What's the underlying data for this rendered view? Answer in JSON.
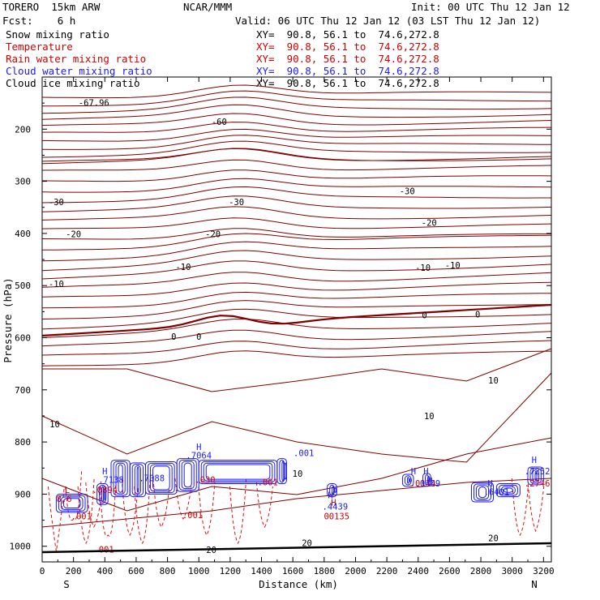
{
  "header": {
    "model": "TORERO  15km ARW",
    "forecast": "Fcst:    6 h",
    "center": "NCAR/MMM",
    "init": "Init: 00 UTC Thu 12 Jan 12",
    "valid": "Valid: 06 UTC Thu 12 Jan 12 (03 LST Thu 12 Jan 12)"
  },
  "legend": [
    {
      "name": "Snow mixing ratio",
      "color": "#000000",
      "xy": "XY=  90.8, 56.1 to  74.6,272.8"
    },
    {
      "name": "Temperature",
      "color": "#d00000",
      "xy": "XY=  90.8, 56.1 to  74.6,272.8"
    },
    {
      "name": "Rain water mixing ratio",
      "color": "#d00000",
      "xy": "XY=  90.8, 56.1 to  74.6,272.8"
    },
    {
      "name": "Cloud water mixing ratio",
      "color": "#1a1aff",
      "xy": "XY=  90.8, 56.1 to  74.6,272.8"
    },
    {
      "name": "Cloud ice mixing ratio",
      "color": "#000000",
      "xy": "XY=  90.8, 56.1 to  74.6,272.8"
    }
  ],
  "chart_data": {
    "type": "contour-cross-section",
    "xlabel": "Distance (km)",
    "ylabel": "Pressure (hPa)",
    "xlim": [
      0,
      3250
    ],
    "ylim": [
      1030,
      100
    ],
    "x_ticks": [
      0,
      200,
      400,
      600,
      800,
      1000,
      1200,
      1400,
      1600,
      1800,
      2000,
      2200,
      2400,
      2600,
      2800,
      3000,
      3200
    ],
    "y_ticks": [
      200,
      300,
      400,
      500,
      600,
      700,
      800,
      900,
      1000
    ],
    "endpoints": {
      "left": "S",
      "right": "N"
    },
    "temperature_labels": [
      {
        "text": "-67.96",
        "x": 330,
        "p": 155
      },
      {
        "text": "-60",
        "x": 1130,
        "p": 192
      },
      {
        "text": "-30",
        "x": 90,
        "p": 346
      },
      {
        "text": "-30",
        "x": 1240,
        "p": 346
      },
      {
        "text": "-30",
        "x": 2330,
        "p": 325
      },
      {
        "text": "-20",
        "x": 200,
        "p": 407
      },
      {
        "text": "-20",
        "x": 1090,
        "p": 407
      },
      {
        "text": "-20",
        "x": 2470,
        "p": 385
      },
      {
        "text": "-10",
        "x": 900,
        "p": 470
      },
      {
        "text": "-10",
        "x": 90,
        "p": 503
      },
      {
        "text": "-10",
        "x": 2430,
        "p": 472
      },
      {
        "text": "-10",
        "x": 2620,
        "p": 467
      },
      {
        "text": "0",
        "x": 840,
        "p": 604
      },
      {
        "text": "0",
        "x": 1000,
        "p": 604
      },
      {
        "text": "0",
        "x": 2440,
        "p": 563
      },
      {
        "text": "0",
        "x": 2780,
        "p": 561
      },
      {
        "text": "10",
        "x": 80,
        "p": 772
      },
      {
        "text": "10",
        "x": 2470,
        "p": 756
      },
      {
        "text": "10",
        "x": 2880,
        "p": 688
      },
      {
        "text": "10",
        "x": 1630,
        "p": 867
      },
      {
        "text": "20",
        "x": 1690,
        "p": 1000
      },
      {
        "text": "20",
        "x": 1080,
        "p": 1013
      },
      {
        "text": "20",
        "x": 2880,
        "p": 990
      }
    ],
    "rain_labels": [
      {
        "text": ".0894",
        "x": 400,
        "p": 898
      },
      {
        "text": "L",
        "x": 160,
        "p": 898
      },
      {
        "text": "8.6",
        "x": 140,
        "p": 915
      },
      {
        "text": ".001",
        "x": 250,
        "p": 948
      },
      {
        "text": ".030",
        "x": 1040,
        "p": 878
      },
      {
        "text": ".001",
        "x": 1440,
        "p": 883
      },
      {
        "text": ".001",
        "x": 960,
        "p": 946
      },
      {
        "text": "001",
        "x": 410,
        "p": 1012
      },
      {
        "text": "00135",
        "x": 1880,
        "p": 948
      },
      {
        "text": ".2746",
        "x": 3160,
        "p": 885
      },
      {
        "text": "H",
        "x": 1860,
        "p": 922
      },
      {
        "text": ".0134",
        "x": 2430,
        "p": 885
      }
    ],
    "cloud_labels": [
      {
        "text": "H",
        "x": 400,
        "p": 862
      },
      {
        "text": ".7138",
        "x": 440,
        "p": 878
      },
      {
        "text": ".7088",
        "x": 700,
        "p": 875
      },
      {
        "text": "H",
        "x": 1000,
        "p": 815
      },
      {
        "text": ".7064",
        "x": 1000,
        "p": 832
      },
      {
        "text": ".001",
        "x": 1670,
        "p": 827
      },
      {
        "text": "H",
        "x": 1840,
        "p": 908
      },
      {
        "text": ".4439",
        "x": 1870,
        "p": 930
      },
      {
        "text": "H",
        "x": 2370,
        "p": 862
      },
      {
        "text": "H",
        "x": 2450,
        "p": 862
      },
      {
        "text": ".0409",
        "x": 2460,
        "p": 885
      },
      {
        "text": "H",
        "x": 2860,
        "p": 885
      },
      {
        "text": ".6401",
        "x": 2900,
        "p": 902
      },
      {
        "text": "H",
        "x": 3140,
        "p": 840
      },
      {
        "text": ".7252",
        "x": 3160,
        "p": 862
      }
    ]
  }
}
